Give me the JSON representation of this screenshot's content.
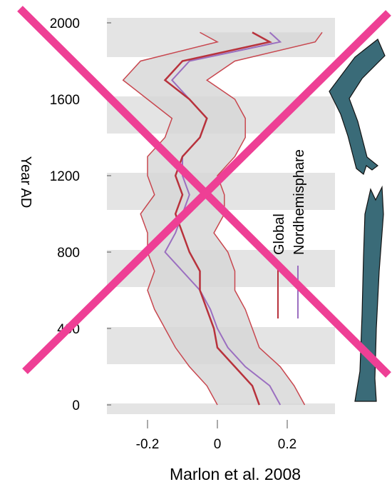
{
  "chart_data": {
    "type": "line",
    "orientation": "vertical",
    "title": "Marlon et al. 2008",
    "y_label": "Year AD",
    "x": [
      0,
      100,
      200,
      300,
      400,
      500,
      600,
      700,
      800,
      900,
      1000,
      1100,
      1200,
      1300,
      1400,
      1500,
      1600,
      1700,
      1800,
      1900,
      1950
    ],
    "series": [
      {
        "name": "Global",
        "color": "#b8323c",
        "values": [
          0.12,
          0.1,
          0.05,
          0.0,
          -0.01,
          -0.03,
          -0.05,
          -0.05,
          -0.08,
          -0.1,
          -0.12,
          -0.1,
          -0.12,
          -0.1,
          -0.05,
          -0.03,
          -0.08,
          -0.15,
          -0.1,
          0.15,
          0.1
        ]
      },
      {
        "name": "Nordhemisphare",
        "color": "#9b6fc0",
        "values": [
          0.18,
          0.15,
          0.08,
          0.03,
          0.0,
          -0.02,
          -0.05,
          -0.1,
          -0.15,
          -0.12,
          -0.1,
          -0.08,
          -0.1,
          -0.1,
          -0.05,
          -0.03,
          -0.08,
          -0.13,
          -0.08,
          0.18,
          0.15
        ]
      }
    ],
    "band": {
      "color": "#c8474f",
      "lower": [
        0.0,
        -0.03,
        -0.08,
        -0.12,
        -0.15,
        -0.18,
        -0.2,
        -0.18,
        -0.2,
        -0.2,
        -0.22,
        -0.18,
        -0.2,
        -0.2,
        -0.15,
        -0.13,
        -0.2,
        -0.27,
        -0.22,
        0.0,
        -0.05
      ],
      "upper": [
        0.25,
        0.22,
        0.18,
        0.12,
        0.1,
        0.08,
        0.05,
        0.05,
        0.03,
        -0.01,
        0.02,
        0.02,
        0.0,
        0.05,
        0.08,
        0.08,
        0.05,
        -0.03,
        0.05,
        0.28,
        0.3
      ]
    },
    "xlim": [
      -0.3,
      0.35
    ],
    "xticks": [
      -0.2,
      0,
      0.2
    ],
    "ylim": [
      -50,
      2050
    ],
    "yticks": [
      0,
      400,
      800,
      1200,
      1600,
      2000
    ]
  }
}
